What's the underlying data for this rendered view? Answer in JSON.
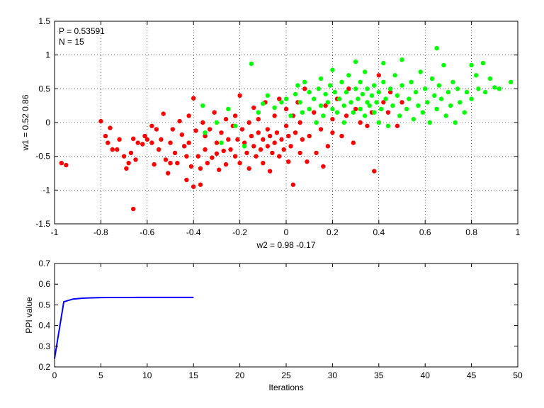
{
  "chart_data": [
    {
      "type": "scatter",
      "annotations": [
        "P = 0.53591",
        "N = 15"
      ],
      "xlabel": "w2 = 0.98  -0.17",
      "ylabel": "w1 = 0.52  0.86",
      "xlim": [
        -1,
        1
      ],
      "ylim": [
        -1.5,
        1.5
      ],
      "xticks": [
        "-1",
        "-0.8",
        "-0.6",
        "-0.4",
        "-0.2",
        "0",
        "0.2",
        "0.4",
        "0.6",
        "0.8",
        "1"
      ],
      "xtick_values": [
        -1,
        -0.8,
        -0.6,
        -0.4,
        -0.2,
        0,
        0.2,
        0.4,
        0.6,
        0.8,
        1
      ],
      "yticks": [
        "-1.5",
        "-1",
        "-0.5",
        "0",
        "0.5",
        "1",
        "1.5"
      ],
      "ytick_values": [
        -1.5,
        -1,
        -0.5,
        0,
        0.5,
        1,
        1.5
      ],
      "grid": true,
      "series": [
        {
          "color": "#ff0000",
          "points": [
            [
              -0.97,
              -0.6
            ],
            [
              -0.95,
              -0.63
            ],
            [
              -0.8,
              0.02
            ],
            [
              -0.78,
              -0.2
            ],
            [
              -0.77,
              -0.3
            ],
            [
              -0.76,
              -0.08
            ],
            [
              -0.75,
              -0.4
            ],
            [
              -0.73,
              -0.4
            ],
            [
              -0.72,
              -0.25
            ],
            [
              -0.7,
              -0.5
            ],
            [
              -0.69,
              -0.68
            ],
            [
              -0.68,
              -0.6
            ],
            [
              -0.67,
              -0.45
            ],
            [
              -0.66,
              -0.24
            ],
            [
              -0.65,
              -0.55
            ],
            [
              -0.66,
              -1.28
            ],
            [
              -0.64,
              -0.3
            ],
            [
              -0.62,
              -0.32
            ],
            [
              -0.61,
              -0.2
            ],
            [
              -0.6,
              -0.25
            ],
            [
              -0.58,
              -0.3
            ],
            [
              -0.58,
              -0.05
            ],
            [
              -0.57,
              -0.62
            ],
            [
              -0.56,
              -0.1
            ],
            [
              -0.55,
              -0.4
            ],
            [
              -0.54,
              -0.25
            ],
            [
              -0.53,
              0.13
            ],
            [
              -0.52,
              -0.55
            ],
            [
              -0.51,
              -0.75
            ],
            [
              -0.5,
              -0.6
            ],
            [
              -0.5,
              -0.3
            ],
            [
              -0.49,
              -0.1
            ],
            [
              -0.48,
              -0.45
            ],
            [
              -0.47,
              -0.6
            ],
            [
              -0.46,
              0.02
            ],
            [
              -0.45,
              -0.18
            ],
            [
              -0.44,
              -0.35
            ],
            [
              -0.43,
              -0.5
            ],
            [
              -0.43,
              -0.85
            ],
            [
              -0.42,
              0.1
            ],
            [
              -0.42,
              -0.3
            ],
            [
              -0.41,
              -0.65
            ],
            [
              -0.4,
              -0.95
            ],
            [
              -0.4,
              0.36
            ],
            [
              -0.39,
              -0.12
            ],
            [
              -0.38,
              -0.5
            ],
            [
              -0.37,
              -0.68
            ],
            [
              -0.37,
              -0.92
            ],
            [
              -0.36,
              0.0
            ],
            [
              -0.35,
              -0.2
            ],
            [
              -0.35,
              -0.4
            ],
            [
              -0.34,
              -0.6
            ],
            [
              -0.33,
              -0.1
            ],
            [
              -0.32,
              -0.52
            ],
            [
              -0.31,
              0.15
            ],
            [
              -0.3,
              -0.3
            ],
            [
              -0.3,
              -0.46
            ],
            [
              -0.29,
              -0.7
            ],
            [
              -0.28,
              -0.15
            ],
            [
              -0.27,
              -0.42
            ],
            [
              -0.26,
              0.05
            ],
            [
              -0.26,
              -0.62
            ],
            [
              -0.25,
              -0.25
            ],
            [
              -0.24,
              -0.4
            ],
            [
              -0.23,
              -0.05
            ],
            [
              -0.22,
              0.1
            ],
            [
              -0.22,
              -0.5
            ],
            [
              -0.21,
              -0.25
            ],
            [
              -0.2,
              -0.6
            ],
            [
              -0.2,
              0.4
            ],
            [
              -0.19,
              -0.1
            ],
            [
              -0.18,
              -0.3
            ],
            [
              -0.17,
              -0.45
            ],
            [
              -0.16,
              0.0
            ],
            [
              -0.16,
              -0.68
            ],
            [
              -0.15,
              -0.2
            ],
            [
              -0.14,
              -0.35
            ],
            [
              -0.14,
              0.22
            ],
            [
              -0.13,
              -0.5
            ],
            [
              -0.12,
              -0.15
            ],
            [
              -0.12,
              0.05
            ],
            [
              -0.11,
              -0.4
            ],
            [
              -0.1,
              -0.25
            ],
            [
              -0.1,
              -0.6
            ],
            [
              -0.09,
              0.3
            ],
            [
              -0.08,
              -0.1
            ],
            [
              -0.08,
              -0.35
            ],
            [
              -0.07,
              -0.2
            ],
            [
              -0.07,
              -0.72
            ],
            [
              -0.06,
              -0.45
            ],
            [
              -0.05,
              0.1
            ],
            [
              -0.05,
              -0.3
            ],
            [
              -0.04,
              -0.15
            ],
            [
              -0.03,
              -0.5
            ],
            [
              -0.03,
              0.35
            ],
            [
              -0.02,
              -0.25
            ],
            [
              -0.01,
              -0.4
            ],
            [
              0.0,
              0.2
            ],
            [
              0.0,
              -0.05
            ],
            [
              0.01,
              -0.2
            ],
            [
              0.01,
              -0.58
            ],
            [
              0.02,
              -0.35
            ],
            [
              0.03,
              0.1
            ],
            [
              0.03,
              -0.92
            ],
            [
              0.04,
              -0.15
            ],
            [
              0.05,
              0.3
            ],
            [
              0.06,
              -0.45
            ],
            [
              0.06,
              0.0
            ],
            [
              0.07,
              -0.25
            ],
            [
              0.08,
              0.5
            ],
            [
              0.09,
              -0.58
            ],
            [
              0.1,
              -0.2
            ],
            [
              0.12,
              0.15
            ],
            [
              0.13,
              -0.45
            ],
            [
              0.15,
              -0.1
            ],
            [
              0.16,
              -0.65
            ],
            [
              0.17,
              0.25
            ],
            [
              0.18,
              -0.35
            ],
            [
              0.2,
              0.05
            ],
            [
              0.2,
              -0.15
            ],
            [
              0.22,
              0.35
            ],
            [
              0.24,
              -0.2
            ],
            [
              0.26,
              0.1
            ],
            [
              0.27,
              0.5
            ],
            [
              0.29,
              -0.3
            ],
            [
              0.3,
              0.2
            ],
            [
              0.32,
              0.0
            ],
            [
              0.35,
              -0.05
            ],
            [
              0.37,
              0.15
            ],
            [
              0.38,
              -0.72
            ],
            [
              0.4,
              0.7
            ],
            [
              0.42,
              0.3
            ],
            [
              0.44,
              0.15
            ],
            [
              0.45,
              0.45
            ],
            [
              0.48,
              -0.05
            ],
            [
              0.5,
              0.3
            ]
          ]
        },
        {
          "color": "#00ff00",
          "points": [
            [
              -0.36,
              0.25
            ],
            [
              -0.35,
              -0.15
            ],
            [
              -0.3,
              0.0
            ],
            [
              -0.28,
              -0.3
            ],
            [
              -0.25,
              0.2
            ],
            [
              -0.22,
              -0.05
            ],
            [
              -0.18,
              -0.35
            ],
            [
              -0.15,
              0.87
            ],
            [
              -0.12,
              0.15
            ],
            [
              -0.1,
              0.28
            ],
            [
              -0.08,
              0.4
            ],
            [
              -0.05,
              0.22
            ],
            [
              -0.02,
              0.3
            ],
            [
              0.0,
              0.35
            ],
            [
              0.02,
              0.1
            ],
            [
              0.04,
              0.42
            ],
            [
              0.05,
              0.55
            ],
            [
              0.06,
              0.3
            ],
            [
              0.07,
              0.15
            ],
            [
              0.08,
              0.6
            ],
            [
              0.1,
              0.45
            ],
            [
              0.1,
              0.2
            ],
            [
              0.12,
              0.35
            ],
            [
              0.13,
              0.0
            ],
            [
              0.14,
              0.5
            ],
            [
              0.15,
              0.65
            ],
            [
              0.15,
              0.25
            ],
            [
              0.16,
              0.1
            ],
            [
              0.17,
              0.42
            ],
            [
              0.18,
              0.3
            ],
            [
              0.19,
              0.55
            ],
            [
              0.2,
              0.2
            ],
            [
              0.2,
              0.78
            ],
            [
              0.21,
              0.45
            ],
            [
              0.22,
              0.15
            ],
            [
              0.23,
              0.35
            ],
            [
              0.24,
              0.6
            ],
            [
              0.25,
              0.25
            ],
            [
              0.25,
              0.0
            ],
            [
              0.26,
              0.45
            ],
            [
              0.27,
              0.7
            ],
            [
              0.28,
              0.3
            ],
            [
              0.29,
              0.15
            ],
            [
              0.3,
              0.5
            ],
            [
              0.3,
              0.9
            ],
            [
              0.31,
              0.35
            ],
            [
              0.32,
              0.2
            ],
            [
              0.32,
              0.6
            ],
            [
              0.33,
              0.42
            ],
            [
              0.34,
              0.1
            ],
            [
              0.34,
              0.75
            ],
            [
              0.35,
              0.3
            ],
            [
              0.35,
              0.5
            ],
            [
              0.36,
              0.25
            ],
            [
              0.37,
              0.4
            ],
            [
              0.38,
              0.15
            ],
            [
              0.38,
              0.55
            ],
            [
              0.39,
              0.3
            ],
            [
              0.4,
              0.45
            ],
            [
              0.4,
              0.0
            ],
            [
              0.41,
              0.2
            ],
            [
              0.42,
              0.6
            ],
            [
              0.42,
              0.88
            ],
            [
              0.43,
              0.35
            ],
            [
              0.44,
              -0.05
            ],
            [
              0.45,
              0.5
            ],
            [
              0.46,
              0.25
            ],
            [
              0.47,
              0.7
            ],
            [
              0.48,
              0.4
            ],
            [
              0.49,
              0.1
            ],
            [
              0.5,
              0.55
            ],
            [
              0.5,
              0.93
            ],
            [
              0.52,
              0.2
            ],
            [
              0.53,
              0.35
            ],
            [
              0.54,
              0.6
            ],
            [
              0.55,
              0.05
            ],
            [
              0.56,
              0.45
            ],
            [
              0.57,
              0.25
            ],
            [
              0.58,
              0.75
            ],
            [
              0.59,
              0.15
            ],
            [
              0.6,
              0.5
            ],
            [
              0.61,
              0.3
            ],
            [
              0.62,
              0.0
            ],
            [
              0.63,
              0.65
            ],
            [
              0.64,
              0.4
            ],
            [
              0.65,
              1.1
            ],
            [
              0.65,
              0.2
            ],
            [
              0.66,
              0.55
            ],
            [
              0.67,
              0.35
            ],
            [
              0.68,
              0.85
            ],
            [
              0.69,
              0.1
            ],
            [
              0.7,
              0.45
            ],
            [
              0.71,
              0.25
            ],
            [
              0.72,
              0.6
            ],
            [
              0.73,
              0.0
            ],
            [
              0.74,
              0.5
            ],
            [
              0.75,
              0.3
            ],
            [
              0.77,
              0.15
            ],
            [
              0.78,
              0.45
            ],
            [
              0.8,
              0.35
            ],
            [
              0.8,
              0.85
            ],
            [
              0.82,
              0.7
            ],
            [
              0.83,
              0.5
            ],
            [
              0.85,
              0.88
            ],
            [
              0.86,
              0.45
            ],
            [
              0.88,
              0.65
            ],
            [
              0.9,
              0.52
            ],
            [
              0.92,
              0.5
            ],
            [
              0.97,
              0.6
            ]
          ]
        }
      ]
    },
    {
      "type": "line",
      "xlabel": "Iterations",
      "ylabel": "PPI value",
      "xlim": [
        0,
        50
      ],
      "ylim": [
        0.2,
        0.7
      ],
      "xticks": [
        "0",
        "5",
        "10",
        "15",
        "20",
        "25",
        "30",
        "35",
        "40",
        "45",
        "50"
      ],
      "xtick_values": [
        0,
        5,
        10,
        15,
        20,
        25,
        30,
        35,
        40,
        45,
        50
      ],
      "yticks": [
        "0.2",
        "0.3",
        "0.4",
        "0.5",
        "0.6",
        "0.7"
      ],
      "ytick_values": [
        0.2,
        0.3,
        0.4,
        0.5,
        0.6,
        0.7
      ],
      "grid": false,
      "series": [
        {
          "color": "#0000ff",
          "x": [
            0,
            1,
            2,
            3,
            4,
            5,
            6,
            7,
            8,
            9,
            10,
            11,
            12,
            13,
            14,
            15
          ],
          "y": [
            0.24,
            0.515,
            0.528,
            0.532,
            0.534,
            0.535,
            0.5355,
            0.5357,
            0.5358,
            0.5359,
            0.5359,
            0.5359,
            0.5359,
            0.5359,
            0.5359,
            0.53591
          ]
        }
      ]
    }
  ]
}
